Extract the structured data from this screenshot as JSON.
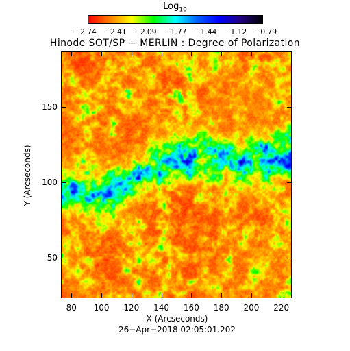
{
  "colorbar": {
    "title": "Log",
    "title_sub": "10",
    "ticks": [
      "−2.74",
      "−2.41",
      "−2.09",
      "−1.77",
      "−1.44",
      "−1.12",
      "−0.79"
    ],
    "range": [
      -2.74,
      -0.79
    ],
    "colormap": [
      "#ff0000",
      "#ff8000",
      "#ffff00",
      "#00ff00",
      "#00ffff",
      "#0060ff",
      "#0000ff",
      "#200080",
      "#000000"
    ]
  },
  "title": "Hinode SOT/SP − MERLIN : Degree of Polarization",
  "x_axis": {
    "label": "X (Arcseconds)",
    "ticks": [
      "80",
      "100",
      "120",
      "140",
      "160",
      "180",
      "200",
      "220"
    ],
    "range": [
      73,
      227
    ]
  },
  "y_axis": {
    "label": "Y (Arcseconds)",
    "ticks": [
      "50",
      "100",
      "150"
    ],
    "range": [
      23,
      187
    ]
  },
  "timestamp": "26−Apr−2018 02:05:01.202"
}
